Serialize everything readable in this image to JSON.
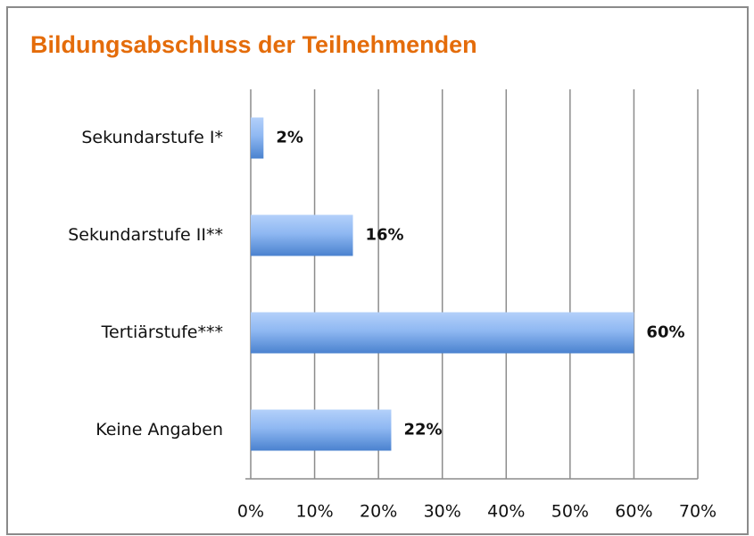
{
  "chart_data": {
    "type": "bar",
    "orientation": "horizontal",
    "title": "Bildungsabschluss der Teilnehmenden",
    "categories": [
      "Sekundarstufe I*",
      "Sekundarstufe II**",
      "Tertiärstufe***",
      "Keine Angaben"
    ],
    "values": [
      2,
      16,
      60,
      22
    ],
    "value_labels": [
      "2%",
      "16%",
      "60%",
      "22%"
    ],
    "color": "#4a82cf",
    "xlim": [
      0,
      70
    ],
    "xticks": [
      {
        "value": 0,
        "label": "0%"
      },
      {
        "value": 10,
        "label": "10%"
      },
      {
        "value": 20,
        "label": "20%"
      },
      {
        "value": 30,
        "label": "30%"
      },
      {
        "value": 40,
        "label": "40%"
      },
      {
        "value": 50,
        "label": "50%"
      },
      {
        "value": 60,
        "label": "60%"
      },
      {
        "value": 70,
        "label": "70%"
      }
    ],
    "grid": true
  }
}
